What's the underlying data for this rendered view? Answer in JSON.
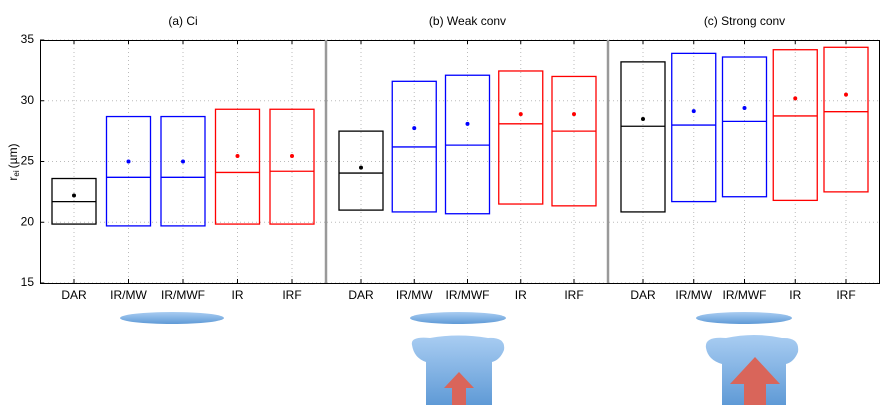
{
  "chart_data": [
    {
      "type": "box",
      "title": "(a) Ci",
      "ylabel": {
        "symbol": "r",
        "subscript": "ei",
        "unit": "(µm)"
      },
      "ylim": [
        15,
        35
      ],
      "yticks": [
        15,
        20,
        25,
        30,
        35
      ],
      "grid": true,
      "categories": [
        "DAR",
        "IR/MW",
        "IR/MWF",
        "IR",
        "IRF"
      ],
      "boxes": [
        {
          "color": "#000000",
          "q1": 19.85,
          "median": 21.7,
          "q3": 23.6,
          "mean": 22.2
        },
        {
          "color": "#0000ff",
          "q1": 19.7,
          "median": 23.7,
          "q3": 28.7,
          "mean": 25.0
        },
        {
          "color": "#0000ff",
          "q1": 19.7,
          "median": 23.7,
          "q3": 28.7,
          "mean": 25.0
        },
        {
          "color": "#ff0000",
          "q1": 19.85,
          "median": 24.1,
          "q3": 29.3,
          "mean": 25.45
        },
        {
          "color": "#ff0000",
          "q1": 19.85,
          "median": 24.2,
          "q3": 29.3,
          "mean": 25.45
        }
      ]
    },
    {
      "type": "box",
      "title": "(b) Weak conv",
      "ylim": [
        15,
        35
      ],
      "yticks": [
        15,
        20,
        25,
        30,
        35
      ],
      "grid": true,
      "categories": [
        "DAR",
        "IR/MW",
        "IR/MWF",
        "IR",
        "IRF"
      ],
      "boxes": [
        {
          "color": "#000000",
          "q1": 21.0,
          "median": 24.05,
          "q3": 27.5,
          "mean": 24.5
        },
        {
          "color": "#0000ff",
          "q1": 20.85,
          "median": 26.2,
          "q3": 31.6,
          "mean": 27.75
        },
        {
          "color": "#0000ff",
          "q1": 20.7,
          "median": 26.35,
          "q3": 32.1,
          "mean": 28.1
        },
        {
          "color": "#ff0000",
          "q1": 21.5,
          "median": 28.1,
          "q3": 32.45,
          "mean": 28.9
        },
        {
          "color": "#ff0000",
          "q1": 21.35,
          "median": 27.5,
          "q3": 32.0,
          "mean": 28.9
        }
      ]
    },
    {
      "type": "box",
      "title": "(c) Strong conv",
      "ylim": [
        15,
        35
      ],
      "yticks": [
        15,
        20,
        25,
        30,
        35
      ],
      "grid": true,
      "categories": [
        "DAR",
        "IR/MW",
        "IR/MWF",
        "IR",
        "IRF"
      ],
      "boxes": [
        {
          "color": "#000000",
          "q1": 20.85,
          "median": 27.9,
          "q3": 33.2,
          "mean": 28.5
        },
        {
          "color": "#0000ff",
          "q1": 21.7,
          "median": 28.0,
          "q3": 33.9,
          "mean": 29.15
        },
        {
          "color": "#0000ff",
          "q1": 22.1,
          "median": 28.3,
          "q3": 33.6,
          "mean": 29.4
        },
        {
          "color": "#ff0000",
          "q1": 21.8,
          "median": 28.75,
          "q3": 34.2,
          "mean": 30.2
        },
        {
          "color": "#ff0000",
          "q1": 22.5,
          "median": 29.1,
          "q3": 34.4,
          "mean": 30.5
        }
      ]
    }
  ]
}
